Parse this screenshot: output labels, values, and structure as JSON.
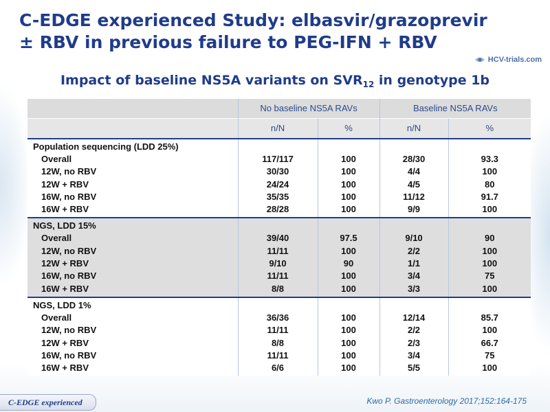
{
  "slide": {
    "title_line1": "C-EDGE experienced Study: elbasvir/grazoprevir",
    "title_line2": "± RBV in previous failure to PEG-IFN + RBV",
    "logo_text": "HCV-trials.com",
    "subtitle_main": "Impact of baseline NS5A variants on SVR",
    "subtitle_sub": "12",
    "subtitle_tail": " in genotype 1b",
    "footer_tab": "C-EDGE experienced",
    "citation": "Kwo P. Gastroenterology 2017;152:164-175"
  },
  "colors": {
    "title": "#1f3c8a",
    "header_bg": "#dcdcdc",
    "group_rule": "#1f3c8a",
    "citation": "#2a6aa8"
  },
  "table": {
    "header": {
      "group_a": "No baseline NS5A RAVs",
      "group_b": "Baseline NS5A RAVs",
      "col_a1": "n/N",
      "col_a2": "%",
      "col_b1": "n/N",
      "col_b2": "%"
    },
    "groups": [
      {
        "heading": "Population sequencing (LDD 25%)",
        "rows": [
          {
            "label": "Overall",
            "a_nN": "117/117",
            "a_pct": "100",
            "b_nN": "28/30",
            "b_pct": "93.3"
          },
          {
            "label": "12W, no RBV",
            "a_nN": "30/30",
            "a_pct": "100",
            "b_nN": "4/4",
            "b_pct": "100"
          },
          {
            "label": "12W + RBV",
            "a_nN": "24/24",
            "a_pct": "100",
            "b_nN": "4/5",
            "b_pct": "80"
          },
          {
            "label": "16W, no RBV",
            "a_nN": "35/35",
            "a_pct": "100",
            "b_nN": "11/12",
            "b_pct": "91.7"
          },
          {
            "label": "16W + RBV",
            "a_nN": "28/28",
            "a_pct": "100",
            "b_nN": "9/9",
            "b_pct": "100"
          }
        ]
      },
      {
        "heading": "NGS, LDD 15%",
        "rows": [
          {
            "label": "Overall",
            "a_nN": "39/40",
            "a_pct": "97.5",
            "b_nN": "9/10",
            "b_pct": "90"
          },
          {
            "label": "12W, no RBV",
            "a_nN": "11/11",
            "a_pct": "100",
            "b_nN": "2/2",
            "b_pct": "100"
          },
          {
            "label": "12W + RBV",
            "a_nN": "9/10",
            "a_pct": "90",
            "b_nN": "1/1",
            "b_pct": "100"
          },
          {
            "label": "16W, no RBV",
            "a_nN": "11/11",
            "a_pct": "100",
            "b_nN": "3/4",
            "b_pct": "75"
          },
          {
            "label": "16W + RBV",
            "a_nN": "8/8",
            "a_pct": "100",
            "b_nN": "3/3",
            "b_pct": "100"
          }
        ]
      },
      {
        "heading": "NGS, LDD 1%",
        "rows": [
          {
            "label": "Overall",
            "a_nN": "36/36",
            "a_pct": "100",
            "b_nN": "12/14",
            "b_pct": "85.7"
          },
          {
            "label": "12W, no RBV",
            "a_nN": "11/11",
            "a_pct": "100",
            "b_nN": "2/2",
            "b_pct": "100"
          },
          {
            "label": "12W + RBV",
            "a_nN": "8/8",
            "a_pct": "100",
            "b_nN": "2/3",
            "b_pct": "66.7"
          },
          {
            "label": "16W, no RBV",
            "a_nN": "11/11",
            "a_pct": "100",
            "b_nN": "3/4",
            "b_pct": "75"
          },
          {
            "label": "16W + RBV",
            "a_nN": "6/6",
            "a_pct": "100",
            "b_nN": "5/5",
            "b_pct": "100"
          }
        ]
      }
    ]
  }
}
